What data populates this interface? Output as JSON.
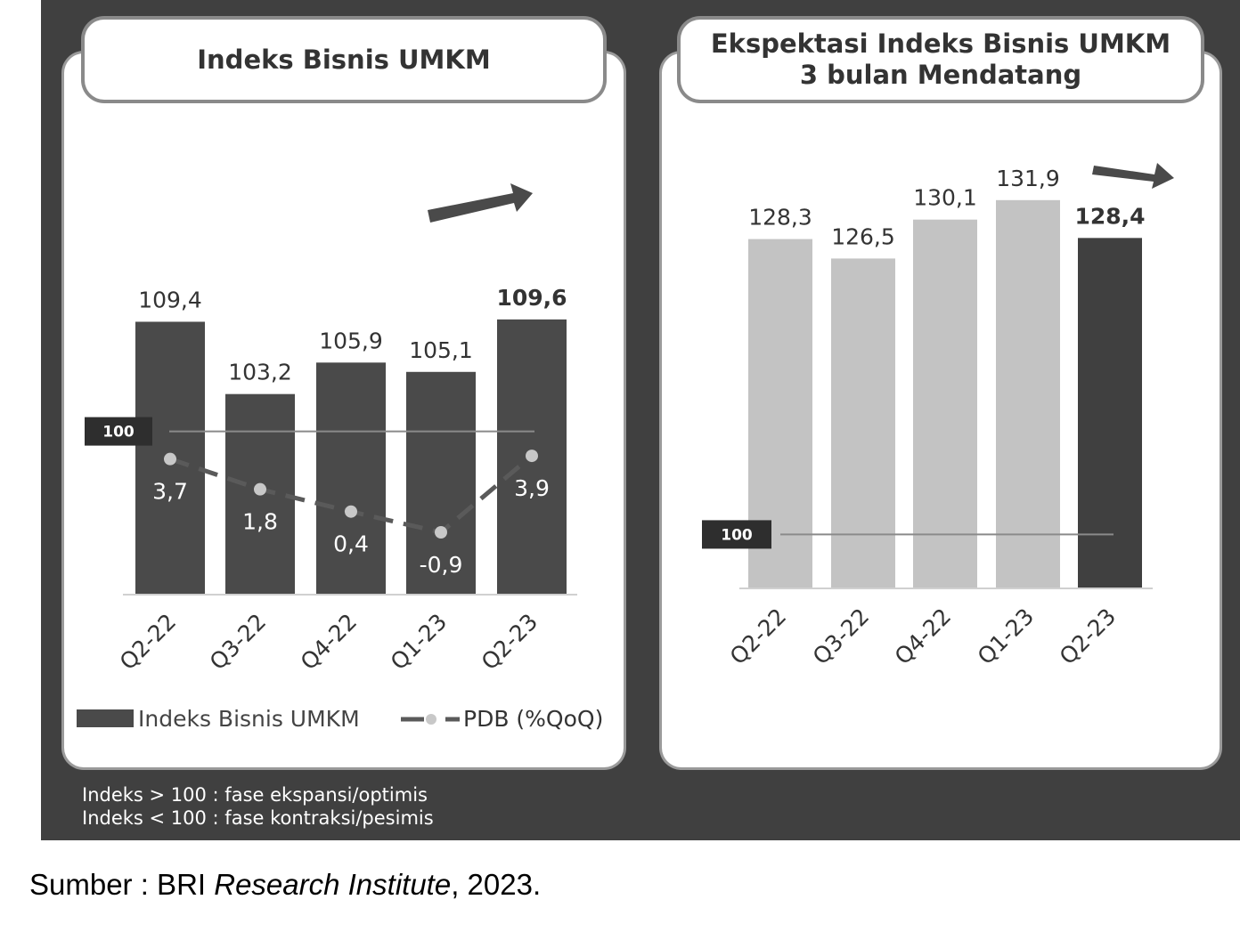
{
  "chart_data": [
    {
      "type": "bar",
      "title": "Indeks Bisnis UMKM",
      "categories": [
        "Q2-22",
        "Q3-22",
        "Q4-22",
        "Q1-23",
        "Q2-23"
      ],
      "series": [
        {
          "name": "Indeks Bisnis UMKM",
          "values": [
            109.4,
            103.2,
            105.9,
            105.1,
            109.6
          ],
          "labels": [
            "109,4",
            "103,2",
            "105,9",
            "105,1",
            "109,6"
          ]
        },
        {
          "name": "PDB (%QoQ)",
          "type": "line",
          "values": [
            3.7,
            1.8,
            0.4,
            -0.9,
            3.9
          ],
          "labels": [
            "3,7",
            "1,8",
            "0,4",
            "-0,9",
            "3,9"
          ]
        }
      ],
      "reference_line": {
        "value": 100,
        "label": "100"
      },
      "legend": [
        "Indeks Bisnis UMKM",
        "PDB (%QoQ)"
      ],
      "legend_position": "bottom",
      "highlight_last": true,
      "grid": false,
      "colors": {
        "bar": "#4a4a4a",
        "line": "#5a5a5a",
        "marker": "#c8c8c8"
      }
    },
    {
      "type": "bar",
      "title": "Ekspektasi Indeks Bisnis UMKM 3 bulan Mendatang",
      "categories": [
        "Q2-22",
        "Q3-22",
        "Q4-22",
        "Q1-23",
        "Q2-23"
      ],
      "series": [
        {
          "values": [
            128.3,
            126.5,
            130.1,
            131.9,
            128.4
          ],
          "labels": [
            "128,3",
            "126,5",
            "130,1",
            "131,9",
            "128,4"
          ]
        }
      ],
      "reference_line": {
        "value": 100,
        "label": "100"
      },
      "highlight_last": true,
      "grid": false,
      "colors": {
        "bar": "#c3c3c3",
        "highlight": "#404040"
      }
    }
  ],
  "titles": {
    "left": "Indeks Bisnis UMKM",
    "right_line1": "Ekspektasi Indeks Bisnis UMKM",
    "right_line2": "3 bulan Mendatang"
  },
  "legend": {
    "bar_label": "Indeks Bisnis UMKM",
    "line_label": "PDB (%QoQ)"
  },
  "notes": {
    "line1": "Indeks > 100 : fase ekspansi/optimis",
    "line2": "Indeks < 100 : fase kontraksi/pesimis"
  },
  "source": {
    "prefix": "Sumber : BRI ",
    "italic": "Research Institute",
    "suffix": ", 2023."
  }
}
